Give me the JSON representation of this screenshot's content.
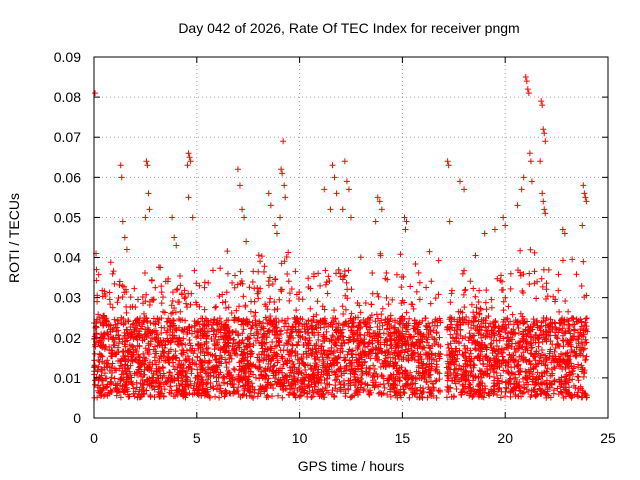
{
  "chart_data": {
    "type": "scatter",
    "title": "Day 042 of 2026, Rate Of TEC Index for receiver pngm",
    "xlabel": "GPS time / hours",
    "ylabel": "ROTI / TECUs",
    "xlim": [
      0,
      25
    ],
    "ylim": [
      0,
      0.09
    ],
    "xticks": [
      0,
      5,
      10,
      15,
      20,
      25
    ],
    "xtick_labels": [
      "0",
      "5",
      "10",
      "15",
      "20",
      "25"
    ],
    "yticks": [
      0,
      0.01,
      0.02,
      0.03,
      0.04,
      0.05,
      0.06,
      0.07,
      0.08,
      0.09
    ],
    "ytick_labels": [
      "0",
      "0.01",
      "0.02",
      "0.03",
      "0.04",
      "0.05",
      "0.06",
      "0.07",
      "0.08",
      "0.09"
    ],
    "grid": true,
    "marker": "plus",
    "color": "#ff0000",
    "series": [
      {
        "name": "ROTI",
        "x_range_hours": [
          0,
          24
        ],
        "data_gap_hours": [
          16.85,
          17.15
        ],
        "typical_band": [
          0.005,
          0.025
        ],
        "points": [
          [
            0.05,
            0.081
          ],
          [
            0.1,
            0.041
          ],
          [
            0.12,
            0.037
          ],
          [
            0.15,
            0.029
          ],
          [
            1.3,
            0.063
          ],
          [
            1.35,
            0.06
          ],
          [
            1.4,
            0.049
          ],
          [
            1.5,
            0.045
          ],
          [
            1.6,
            0.042
          ],
          [
            2.55,
            0.064
          ],
          [
            2.6,
            0.063
          ],
          [
            2.65,
            0.056
          ],
          [
            2.7,
            0.052
          ],
          [
            2.5,
            0.05
          ],
          [
            3.8,
            0.05
          ],
          [
            3.9,
            0.045
          ],
          [
            4.0,
            0.043
          ],
          [
            4.6,
            0.066
          ],
          [
            4.65,
            0.065
          ],
          [
            4.7,
            0.064
          ],
          [
            4.55,
            0.063
          ],
          [
            4.6,
            0.055
          ],
          [
            4.8,
            0.05
          ],
          [
            7.0,
            0.062
          ],
          [
            7.1,
            0.058
          ],
          [
            7.2,
            0.052
          ],
          [
            7.3,
            0.05
          ],
          [
            7.4,
            0.044
          ],
          [
            8.5,
            0.056
          ],
          [
            8.6,
            0.053
          ],
          [
            8.8,
            0.048
          ],
          [
            8.9,
            0.046
          ],
          [
            9.2,
            0.069
          ],
          [
            9.1,
            0.062
          ],
          [
            9.15,
            0.061
          ],
          [
            9.25,
            0.058
          ],
          [
            9.3,
            0.055
          ],
          [
            9.05,
            0.05
          ],
          [
            11.6,
            0.063
          ],
          [
            11.7,
            0.06
          ],
          [
            11.8,
            0.056
          ],
          [
            11.2,
            0.057
          ],
          [
            11.5,
            0.052
          ],
          [
            12.2,
            0.064
          ],
          [
            12.3,
            0.059
          ],
          [
            12.4,
            0.057
          ],
          [
            12.1,
            0.052
          ],
          [
            12.5,
            0.05
          ],
          [
            13.8,
            0.055
          ],
          [
            13.9,
            0.054
          ],
          [
            13.7,
            0.049
          ],
          [
            14.0,
            0.052
          ],
          [
            15.1,
            0.05
          ],
          [
            15.2,
            0.049
          ],
          [
            15.15,
            0.047
          ],
          [
            17.2,
            0.064
          ],
          [
            17.25,
            0.063
          ],
          [
            17.3,
            0.049
          ],
          [
            17.8,
            0.059
          ],
          [
            18.0,
            0.057
          ],
          [
            19.0,
            0.046
          ],
          [
            19.5,
            0.047
          ],
          [
            19.9,
            0.05
          ],
          [
            20.0,
            0.048
          ],
          [
            20.9,
            0.06
          ],
          [
            20.6,
            0.053
          ],
          [
            20.8,
            0.057
          ],
          [
            21.0,
            0.085
          ],
          [
            21.05,
            0.084
          ],
          [
            21.1,
            0.082
          ],
          [
            21.15,
            0.081
          ],
          [
            21.2,
            0.066
          ],
          [
            21.25,
            0.064
          ],
          [
            21.3,
            0.059
          ],
          [
            21.75,
            0.079
          ],
          [
            21.8,
            0.078
          ],
          [
            21.85,
            0.072
          ],
          [
            21.9,
            0.071
          ],
          [
            21.95,
            0.069
          ],
          [
            21.7,
            0.064
          ],
          [
            21.8,
            0.056
          ],
          [
            21.85,
            0.054
          ],
          [
            21.9,
            0.052
          ],
          [
            21.95,
            0.051
          ],
          [
            22.8,
            0.047
          ],
          [
            22.9,
            0.046
          ],
          [
            23.8,
            0.058
          ],
          [
            23.85,
            0.056
          ],
          [
            23.9,
            0.055
          ],
          [
            23.95,
            0.054
          ],
          [
            23.75,
            0.048
          ],
          [
            23.8,
            0.039
          ]
        ]
      }
    ]
  }
}
